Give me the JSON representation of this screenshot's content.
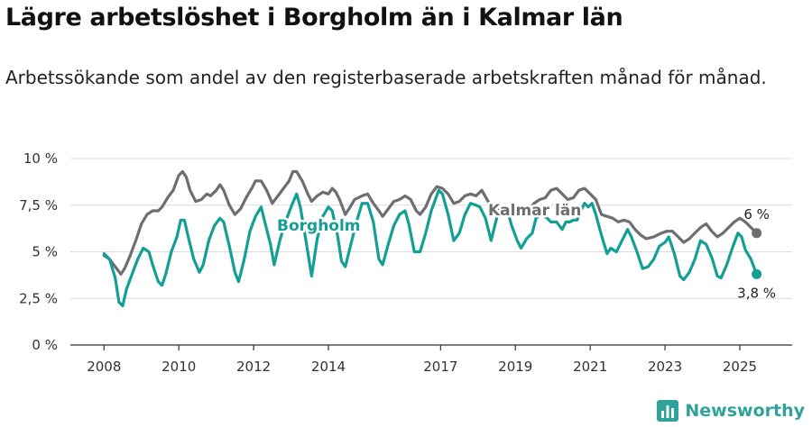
{
  "title": "Lägre arbetslöshet i Borgholm än i Kalmar län",
  "subtitle": "Arbetssökande som andel av den registerbaserade arbetskraften månad för månad.",
  "brand": {
    "name": "Newsworthy",
    "color": "#2fa39a"
  },
  "chart_data": {
    "type": "line",
    "y_ticks": [
      {
        "value": 0,
        "label": "0 %"
      },
      {
        "value": 2.5,
        "label": "2,5 %"
      },
      {
        "value": 5,
        "label": "5 %"
      },
      {
        "value": 7.5,
        "label": "7,5 %"
      },
      {
        "value": 10,
        "label": "10 %"
      }
    ],
    "x_ticks": [
      {
        "value": 2008,
        "label": "2008"
      },
      {
        "value": 2010,
        "label": "2010"
      },
      {
        "value": 2012,
        "label": "2012"
      },
      {
        "value": 2014,
        "label": "2014"
      },
      {
        "value": 2017,
        "label": "2017"
      },
      {
        "value": 2019,
        "label": "2019"
      },
      {
        "value": 2021,
        "label": "2021"
      },
      {
        "value": 2023,
        "label": "2023"
      },
      {
        "value": 2025,
        "label": "2025"
      }
    ],
    "xlim": [
      2007.1,
      2026.4
    ],
    "ylim": [
      0,
      10
    ],
    "grid": true,
    "series": [
      {
        "name": "Kalmar län",
        "color": "#6e6e72",
        "end_label": "6 %",
        "points": [
          [
            2008.0,
            4.8
          ],
          [
            2008.15,
            4.6
          ],
          [
            2008.3,
            4.2
          ],
          [
            2008.45,
            3.8
          ],
          [
            2008.55,
            4.1
          ],
          [
            2008.7,
            4.8
          ],
          [
            2008.85,
            5.6
          ],
          [
            2009.0,
            6.5
          ],
          [
            2009.15,
            7.0
          ],
          [
            2009.3,
            7.2
          ],
          [
            2009.45,
            7.2
          ],
          [
            2009.55,
            7.4
          ],
          [
            2009.7,
            7.9
          ],
          [
            2009.85,
            8.3
          ],
          [
            2010.0,
            9.1
          ],
          [
            2010.1,
            9.3
          ],
          [
            2010.2,
            9.0
          ],
          [
            2010.3,
            8.3
          ],
          [
            2010.45,
            7.7
          ],
          [
            2010.6,
            7.8
          ],
          [
            2010.75,
            8.1
          ],
          [
            2010.85,
            8.0
          ],
          [
            2011.0,
            8.3
          ],
          [
            2011.1,
            8.6
          ],
          [
            2011.2,
            8.3
          ],
          [
            2011.35,
            7.5
          ],
          [
            2011.5,
            7.0
          ],
          [
            2011.65,
            7.3
          ],
          [
            2011.8,
            7.9
          ],
          [
            2011.95,
            8.4
          ],
          [
            2012.05,
            8.8
          ],
          [
            2012.2,
            8.8
          ],
          [
            2012.35,
            8.3
          ],
          [
            2012.5,
            7.6
          ],
          [
            2012.65,
            8.0
          ],
          [
            2012.8,
            8.4
          ],
          [
            2012.95,
            8.8
          ],
          [
            2013.05,
            9.3
          ],
          [
            2013.15,
            9.3
          ],
          [
            2013.3,
            8.8
          ],
          [
            2013.45,
            8.1
          ],
          [
            2013.55,
            7.7
          ],
          [
            2013.7,
            8.0
          ],
          [
            2013.85,
            8.2
          ],
          [
            2014.0,
            8.1
          ],
          [
            2014.1,
            8.4
          ],
          [
            2014.2,
            8.2
          ],
          [
            2014.3,
            7.8
          ],
          [
            2014.45,
            7.0
          ],
          [
            2014.55,
            7.3
          ],
          [
            2014.7,
            7.8
          ],
          [
            2014.9,
            8.0
          ],
          [
            2015.05,
            8.1
          ],
          [
            2015.2,
            7.6
          ],
          [
            2015.35,
            7.2
          ],
          [
            2015.45,
            6.9
          ],
          [
            2015.6,
            7.3
          ],
          [
            2015.75,
            7.7
          ],
          [
            2015.9,
            7.8
          ],
          [
            2016.05,
            8.0
          ],
          [
            2016.2,
            7.8
          ],
          [
            2016.35,
            7.2
          ],
          [
            2016.45,
            7.0
          ],
          [
            2016.6,
            7.4
          ],
          [
            2016.75,
            8.1
          ],
          [
            2016.9,
            8.5
          ],
          [
            2017.05,
            8.4
          ],
          [
            2017.2,
            8.1
          ],
          [
            2017.35,
            7.6
          ],
          [
            2017.5,
            7.7
          ],
          [
            2017.65,
            8.0
          ],
          [
            2017.8,
            8.1
          ],
          [
            2017.95,
            8.0
          ],
          [
            2018.1,
            8.3
          ],
          [
            2018.3,
            7.6
          ],
          [
            2018.5,
            7.2
          ],
          [
            2018.65,
            7.3
          ],
          [
            2018.85,
            7.2
          ],
          [
            2019.05,
            7.3
          ],
          [
            2019.2,
            7.1
          ],
          [
            2019.35,
            7.2
          ],
          [
            2019.5,
            7.6
          ],
          [
            2019.65,
            7.8
          ],
          [
            2019.8,
            7.9
          ],
          [
            2019.95,
            8.3
          ],
          [
            2020.1,
            8.4
          ],
          [
            2020.25,
            8.1
          ],
          [
            2020.4,
            7.8
          ],
          [
            2020.55,
            7.9
          ],
          [
            2020.7,
            8.3
          ],
          [
            2020.85,
            8.4
          ],
          [
            2021.0,
            8.1
          ],
          [
            2021.15,
            7.8
          ],
          [
            2021.3,
            7.0
          ],
          [
            2021.45,
            6.9
          ],
          [
            2021.6,
            6.8
          ],
          [
            2021.75,
            6.6
          ],
          [
            2021.9,
            6.7
          ],
          [
            2022.05,
            6.6
          ],
          [
            2022.2,
            6.2
          ],
          [
            2022.35,
            5.9
          ],
          [
            2022.5,
            5.7
          ],
          [
            2022.7,
            5.8
          ],
          [
            2022.9,
            6.0
          ],
          [
            2023.05,
            6.1
          ],
          [
            2023.2,
            6.1
          ],
          [
            2023.35,
            5.8
          ],
          [
            2023.5,
            5.5
          ],
          [
            2023.65,
            5.7
          ],
          [
            2023.8,
            6.0
          ],
          [
            2023.95,
            6.3
          ],
          [
            2024.1,
            6.5
          ],
          [
            2024.25,
            6.1
          ],
          [
            2024.4,
            5.8
          ],
          [
            2024.55,
            6.0
          ],
          [
            2024.7,
            6.3
          ],
          [
            2024.85,
            6.6
          ],
          [
            2025.0,
            6.8
          ],
          [
            2025.15,
            6.6
          ],
          [
            2025.3,
            6.3
          ],
          [
            2025.45,
            6.0
          ]
        ]
      },
      {
        "name": "Borgholm",
        "color": "#139f96",
        "end_label": "3,8 %",
        "points": [
          [
            2008.0,
            4.9
          ],
          [
            2008.15,
            4.6
          ],
          [
            2008.3,
            3.6
          ],
          [
            2008.4,
            2.3
          ],
          [
            2008.5,
            2.1
          ],
          [
            2008.6,
            3.0
          ],
          [
            2008.75,
            3.8
          ],
          [
            2008.9,
            4.6
          ],
          [
            2009.05,
            5.2
          ],
          [
            2009.2,
            5.0
          ],
          [
            2009.3,
            4.3
          ],
          [
            2009.45,
            3.4
          ],
          [
            2009.55,
            3.2
          ],
          [
            2009.65,
            3.8
          ],
          [
            2009.8,
            5.0
          ],
          [
            2009.95,
            5.8
          ],
          [
            2010.05,
            6.7
          ],
          [
            2010.15,
            6.7
          ],
          [
            2010.25,
            5.8
          ],
          [
            2010.4,
            4.6
          ],
          [
            2010.55,
            3.9
          ],
          [
            2010.65,
            4.3
          ],
          [
            2010.8,
            5.6
          ],
          [
            2010.95,
            6.4
          ],
          [
            2011.1,
            6.8
          ],
          [
            2011.2,
            6.6
          ],
          [
            2011.35,
            5.3
          ],
          [
            2011.5,
            3.9
          ],
          [
            2011.6,
            3.4
          ],
          [
            2011.75,
            4.6
          ],
          [
            2011.9,
            6.1
          ],
          [
            2012.05,
            6.9
          ],
          [
            2012.2,
            7.4
          ],
          [
            2012.3,
            6.6
          ],
          [
            2012.45,
            5.4
          ],
          [
            2012.55,
            4.3
          ],
          [
            2012.7,
            5.6
          ],
          [
            2012.85,
            6.6
          ],
          [
            2013.0,
            7.4
          ],
          [
            2013.15,
            8.1
          ],
          [
            2013.25,
            7.4
          ],
          [
            2013.4,
            5.6
          ],
          [
            2013.55,
            3.7
          ],
          [
            2013.7,
            5.7
          ],
          [
            2013.85,
            6.9
          ],
          [
            2014.0,
            7.4
          ],
          [
            2014.1,
            7.2
          ],
          [
            2014.25,
            5.8
          ],
          [
            2014.35,
            4.5
          ],
          [
            2014.45,
            4.2
          ],
          [
            2014.6,
            5.4
          ],
          [
            2014.75,
            6.6
          ],
          [
            2014.9,
            7.6
          ],
          [
            2015.05,
            7.6
          ],
          [
            2015.2,
            6.6
          ],
          [
            2015.35,
            4.6
          ],
          [
            2015.45,
            4.3
          ],
          [
            2015.6,
            5.4
          ],
          [
            2015.75,
            6.4
          ],
          [
            2015.9,
            7.0
          ],
          [
            2016.05,
            7.2
          ],
          [
            2016.15,
            6.5
          ],
          [
            2016.3,
            5.0
          ],
          [
            2016.45,
            5.0
          ],
          [
            2016.6,
            6.0
          ],
          [
            2016.75,
            7.2
          ],
          [
            2016.95,
            8.3
          ],
          [
            2017.05,
            8.1
          ],
          [
            2017.2,
            7.0
          ],
          [
            2017.35,
            5.6
          ],
          [
            2017.5,
            6.0
          ],
          [
            2017.65,
            7.0
          ],
          [
            2017.8,
            7.6
          ],
          [
            2017.95,
            7.5
          ],
          [
            2018.05,
            7.4
          ],
          [
            2018.2,
            6.8
          ],
          [
            2018.35,
            5.6
          ],
          [
            2018.5,
            6.8
          ],
          [
            2018.65,
            7.4
          ],
          [
            2018.8,
            7.1
          ],
          [
            2018.9,
            6.4
          ],
          [
            2019.05,
            5.6
          ],
          [
            2019.15,
            5.2
          ],
          [
            2019.3,
            5.7
          ],
          [
            2019.45,
            6.0
          ],
          [
            2019.55,
            6.8
          ],
          [
            2019.7,
            7.0
          ],
          [
            2019.85,
            6.8
          ],
          [
            2019.95,
            6.6
          ],
          [
            2020.1,
            6.6
          ],
          [
            2020.25,
            6.2
          ],
          [
            2020.35,
            6.6
          ],
          [
            2020.45,
            6.6
          ],
          [
            2020.55,
            6.7
          ],
          [
            2020.65,
            6.7
          ],
          [
            2020.75,
            7.2
          ],
          [
            2020.85,
            7.6
          ],
          [
            2020.95,
            7.4
          ],
          [
            2021.05,
            7.6
          ],
          [
            2021.15,
            7.0
          ],
          [
            2021.3,
            5.9
          ],
          [
            2021.45,
            4.9
          ],
          [
            2021.55,
            5.2
          ],
          [
            2021.7,
            5.0
          ],
          [
            2021.85,
            5.6
          ],
          [
            2022.0,
            6.2
          ],
          [
            2022.1,
            5.8
          ],
          [
            2022.25,
            5.0
          ],
          [
            2022.4,
            4.1
          ],
          [
            2022.55,
            4.2
          ],
          [
            2022.7,
            4.6
          ],
          [
            2022.85,
            5.3
          ],
          [
            2023.0,
            5.5
          ],
          [
            2023.1,
            5.8
          ],
          [
            2023.25,
            4.9
          ],
          [
            2023.4,
            3.7
          ],
          [
            2023.5,
            3.5
          ],
          [
            2023.65,
            3.9
          ],
          [
            2023.8,
            4.6
          ],
          [
            2023.95,
            5.6
          ],
          [
            2024.1,
            5.4
          ],
          [
            2024.25,
            4.7
          ],
          [
            2024.4,
            3.7
          ],
          [
            2024.5,
            3.6
          ],
          [
            2024.65,
            4.3
          ],
          [
            2024.8,
            5.2
          ],
          [
            2024.95,
            6.0
          ],
          [
            2025.05,
            5.8
          ],
          [
            2025.15,
            5.1
          ],
          [
            2025.3,
            4.6
          ],
          [
            2025.45,
            3.8
          ]
        ]
      }
    ]
  }
}
